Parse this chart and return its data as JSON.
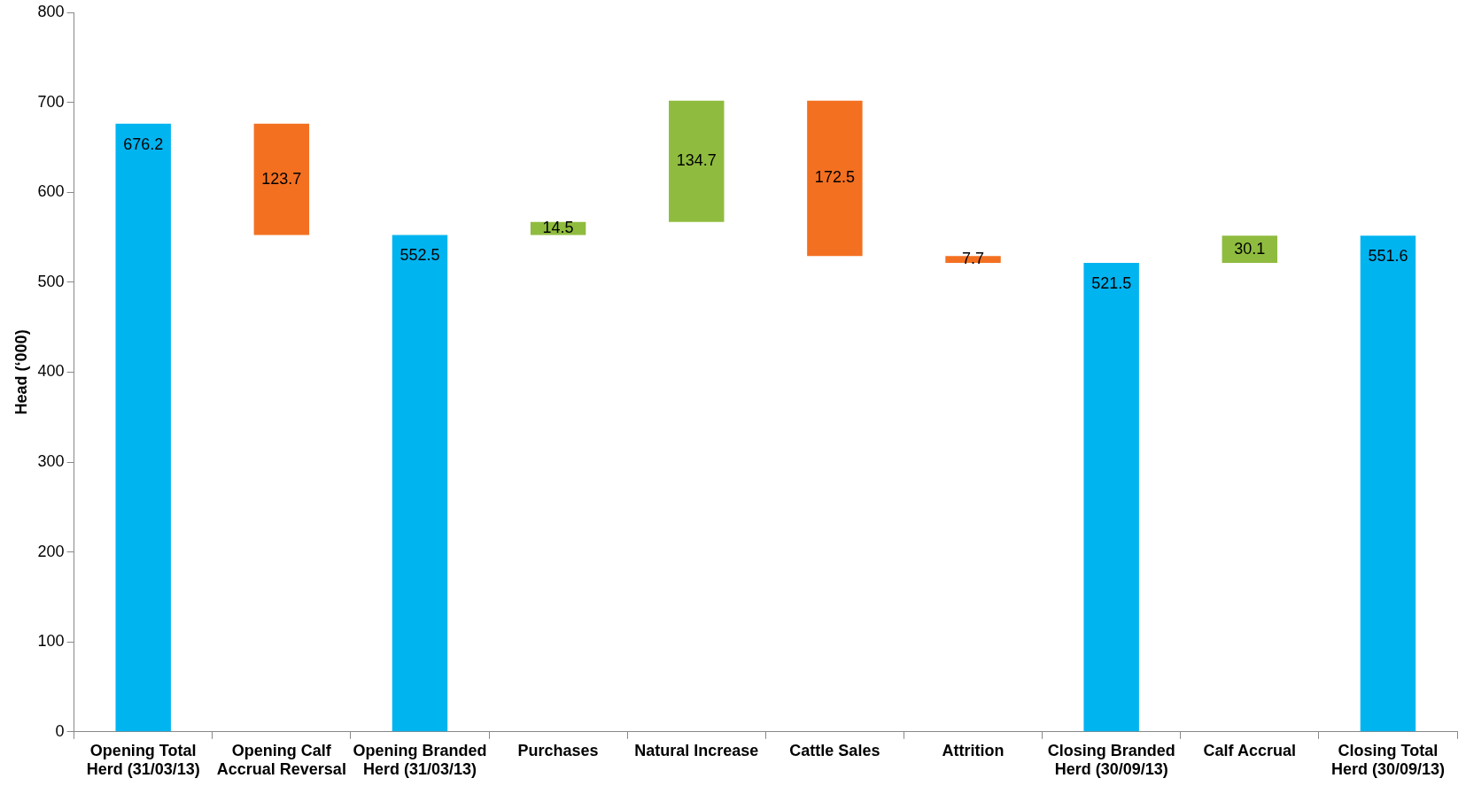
{
  "chart_data": {
    "type": "bar",
    "ylabel": "Head (‘000)",
    "categories": [
      "Opening Total Herd (31/03/13)",
      "Opening Calf Accrual Reversal",
      "Opening Branded Herd (31/03/13)",
      "Purchases",
      "Natural Increase",
      "Cattle Sales",
      "Attrition",
      "Closing Branded Herd (30/09/13)",
      "Calf Accrual",
      "Closing Total Herd (30/09/13)"
    ],
    "values": [
      676.2,
      123.7,
      552.5,
      14.5,
      134.7,
      172.5,
      7.7,
      521.5,
      30.1,
      551.6
    ],
    "base": [
      0,
      552.5,
      0,
      552.5,
      567,
      529.2,
      521.5,
      0,
      521.5,
      0
    ],
    "colors": [
      "#00b4f0",
      "#f37021",
      "#00b4f0",
      "#8fbc3f",
      "#8fbc3f",
      "#f37021",
      "#f37021",
      "#00b4f0",
      "#8fbc3f",
      "#00b4f0"
    ],
    "ylim": [
      0,
      800
    ],
    "yticks": [
      0,
      100,
      200,
      300,
      400,
      500,
      600,
      700,
      800
    ],
    "data_labels": true,
    "grid": false,
    "legend": false
  }
}
